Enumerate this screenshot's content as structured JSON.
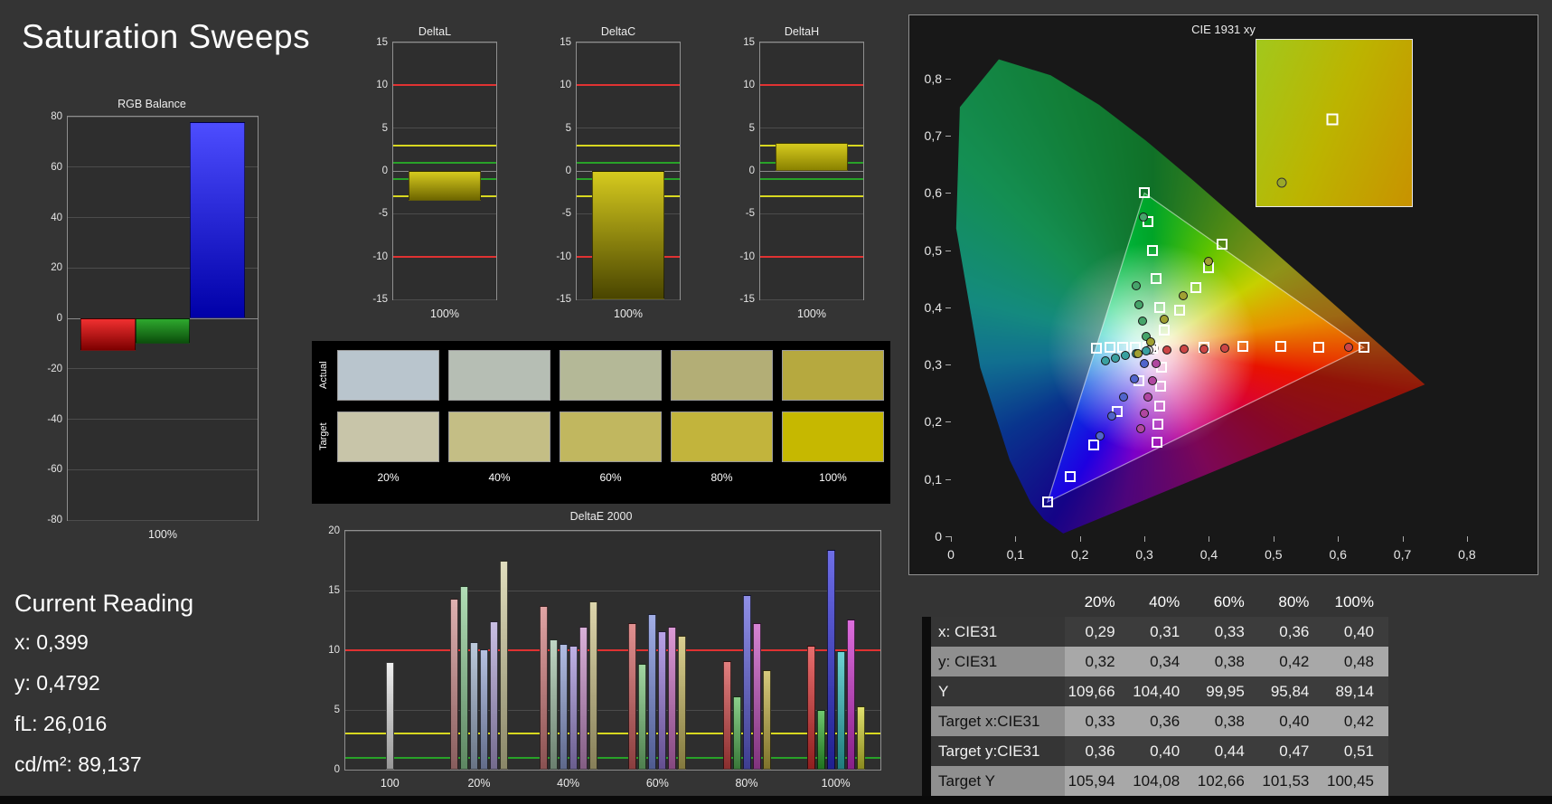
{
  "page": {
    "title": "Saturation Sweeps"
  },
  "current_reading": {
    "heading": "Current Reading",
    "lines": [
      "x: 0,399",
      "y: 0,4792",
      "fL: 26,016",
      "cd/m²: 89,137"
    ]
  },
  "swatches": {
    "row_labels": [
      "Actual",
      "Target"
    ],
    "col_labels": [
      "20%",
      "40%",
      "60%",
      "80%",
      "100%"
    ],
    "actual_colors": [
      "#b9c5cd",
      "#b6beb4",
      "#b4b897",
      "#b3ae76",
      "#b6a93f"
    ],
    "target_colors": [
      "#c8c5a9",
      "#c4be85",
      "#c1b75f",
      "#c2b43c",
      "#c6b800"
    ]
  },
  "table": {
    "col_headers": [
      "20%",
      "40%",
      "60%",
      "80%",
      "100%"
    ],
    "rows": [
      {
        "label": "x: CIE31",
        "values": [
          "0,29",
          "0,31",
          "0,33",
          "0,36",
          "0,40"
        ]
      },
      {
        "label": "y: CIE31",
        "values": [
          "0,32",
          "0,34",
          "0,38",
          "0,42",
          "0,48"
        ]
      },
      {
        "label": "Y",
        "values": [
          "109,66",
          "104,40",
          "99,95",
          "95,84",
          "89,14"
        ]
      },
      {
        "label": "Target x:CIE31",
        "values": [
          "0,33",
          "0,36",
          "0,38",
          "0,40",
          "0,42"
        ]
      },
      {
        "label": "Target y:CIE31",
        "values": [
          "0,36",
          "0,40",
          "0,44",
          "0,47",
          "0,51"
        ]
      },
      {
        "label": "Target Y",
        "values": [
          "105,94",
          "104,08",
          "102,66",
          "101,53",
          "100,45"
        ]
      }
    ]
  },
  "chart_data": [
    {
      "id": "rgb_balance",
      "type": "bar",
      "title": "RGB Balance",
      "xlabel": "100%",
      "ylim": [
        -80,
        80
      ],
      "yticks": [
        80,
        60,
        40,
        20,
        0,
        -20,
        -40,
        -60,
        -80
      ],
      "bars": [
        {
          "name": "red",
          "value": -13,
          "color": "#f03030",
          "color_dark": "#7d0000"
        },
        {
          "name": "green",
          "value": -10,
          "color": "#2ea82e",
          "color_dark": "#0c4f0c"
        },
        {
          "name": "blue",
          "value": 78,
          "color": "#4d4dff",
          "color_dark": "#0000a8"
        }
      ]
    },
    {
      "id": "delta_l",
      "type": "bar",
      "title": "DeltaL",
      "xlabel": "100%",
      "ylim": [
        -15,
        15
      ],
      "yticks": [
        15,
        10,
        5,
        0,
        -5,
        -10,
        -15
      ],
      "ref_lines": [
        {
          "v": 10,
          "color": "#e03232"
        },
        {
          "v": 3,
          "color": "#d8d820"
        },
        {
          "v": 1,
          "color": "#28a228"
        },
        {
          "v": -1,
          "color": "#28a228"
        },
        {
          "v": -3,
          "color": "#d8d820"
        },
        {
          "v": -10,
          "color": "#e03232"
        }
      ],
      "value": -3.5,
      "bar_color": "#d6ca1e",
      "bar_color_dark": "#6e6600"
    },
    {
      "id": "delta_c",
      "type": "bar",
      "title": "DeltaC",
      "xlabel": "100%",
      "ylim": [
        -15,
        15
      ],
      "yticks": [
        15,
        10,
        5,
        0,
        -5,
        -10,
        -15
      ],
      "ref_lines": [
        {
          "v": 10,
          "color": "#e03232"
        },
        {
          "v": 3,
          "color": "#d8d820"
        },
        {
          "v": 1,
          "color": "#28a228"
        },
        {
          "v": -1,
          "color": "#28a228"
        },
        {
          "v": -3,
          "color": "#d8d820"
        },
        {
          "v": -10,
          "color": "#e03232"
        }
      ],
      "value": -15,
      "bar_color": "#d6ca1e",
      "bar_color_dark": "#4a4500"
    },
    {
      "id": "delta_h",
      "type": "bar",
      "title": "DeltaH",
      "xlabel": "100%",
      "ylim": [
        -15,
        15
      ],
      "yticks": [
        15,
        10,
        5,
        0,
        -5,
        -10,
        -15
      ],
      "ref_lines": [
        {
          "v": 10,
          "color": "#e03232"
        },
        {
          "v": 3,
          "color": "#d8d820"
        },
        {
          "v": 1,
          "color": "#28a228"
        },
        {
          "v": -1,
          "color": "#28a228"
        },
        {
          "v": -3,
          "color": "#d8d820"
        },
        {
          "v": -10,
          "color": "#e03232"
        }
      ],
      "value": 3.3,
      "bar_color": "#d6ca1e",
      "bar_color_dark": "#8a8200"
    },
    {
      "id": "delta_e2000",
      "type": "grouped-bar",
      "title": "DeltaE 2000",
      "ylim": [
        0,
        20
      ],
      "yticks": [
        20,
        15,
        10,
        5,
        0
      ],
      "ref_lines": [
        {
          "v": 10,
          "color": "#e03232"
        },
        {
          "v": 3,
          "color": "#d8d820"
        },
        {
          "v": 1,
          "color": "#28a228"
        }
      ],
      "groups": [
        {
          "label": "100",
          "bars": [
            {
              "value": 9.0,
              "color": "#e9e9e9"
            }
          ]
        },
        {
          "label": "20%",
          "bars": [
            {
              "value": 14.3,
              "color": "#d18f8f"
            },
            {
              "value": 15.4,
              "color": "#8fcf96"
            },
            {
              "value": 10.7,
              "color": "#9fb2cc"
            },
            {
              "value": 10.1,
              "color": "#96a6d4"
            },
            {
              "value": 12.4,
              "color": "#b2a4d9"
            },
            {
              "value": 17.5,
              "color": "#d4cfa0"
            }
          ]
        },
        {
          "label": "40%",
          "bars": [
            {
              "value": 13.7,
              "color": "#d47d7d"
            },
            {
              "value": 10.9,
              "color": "#a4c4aa"
            },
            {
              "value": 10.5,
              "color": "#90a0d6"
            },
            {
              "value": 10.4,
              "color": "#a390da"
            },
            {
              "value": 12.0,
              "color": "#c98fc9"
            },
            {
              "value": 14.1,
              "color": "#cfc488"
            }
          ]
        },
        {
          "label": "60%",
          "bars": [
            {
              "value": 12.3,
              "color": "#d46060"
            },
            {
              "value": 8.9,
              "color": "#79c479"
            },
            {
              "value": 13.0,
              "color": "#7a8cdd"
            },
            {
              "value": 11.6,
              "color": "#9a7add"
            },
            {
              "value": 12.0,
              "color": "#cc6fc4"
            },
            {
              "value": 11.2,
              "color": "#c9ba60"
            }
          ]
        },
        {
          "label": "80%",
          "bars": [
            {
              "value": 9.1,
              "color": "#d44848"
            },
            {
              "value": 6.1,
              "color": "#58ba58"
            },
            {
              "value": 14.6,
              "color": "#5f5fdd"
            },
            {
              "value": 12.3,
              "color": "#c44fc0"
            },
            {
              "value": 8.3,
              "color": "#c4b143"
            }
          ]
        },
        {
          "label": "100%",
          "bars": [
            {
              "value": 10.4,
              "color": "#dd2f2f"
            },
            {
              "value": 5.0,
              "color": "#2faf2f"
            },
            {
              "value": 18.4,
              "color": "#2f2fdd"
            },
            {
              "value": 9.9,
              "color": "#2fbfbf"
            },
            {
              "value": 12.6,
              "color": "#cf2fcf"
            },
            {
              "value": 5.3,
              "color": "#d4d42f"
            }
          ]
        }
      ]
    },
    {
      "id": "cie_1931",
      "type": "scatter",
      "title": "CIE 1931 xy",
      "xticks": [
        "0",
        "0,1",
        "0,2",
        "0,3",
        "0,4",
        "0,5",
        "0,6",
        "0,7",
        "0,8"
      ],
      "yticks": [
        "0",
        "0,1",
        "0,2",
        "0,3",
        "0,4",
        "0,5",
        "0,6",
        "0,7",
        "0,8"
      ],
      "xlim": [
        0,
        0.88
      ],
      "ylim": [
        0,
        0.86
      ],
      "gamut_triangle": [
        [
          0.64,
          0.33
        ],
        [
          0.3,
          0.6
        ],
        [
          0.15,
          0.06
        ]
      ],
      "white_point": [
        0.3127,
        0.329
      ],
      "targets": [
        [
          0.3127,
          0.329
        ],
        [
          0.393,
          0.331
        ],
        [
          0.452,
          0.332
        ],
        [
          0.512,
          0.332
        ],
        [
          0.571,
          0.331
        ],
        [
          0.64,
          0.33
        ],
        [
          0.323,
          0.4
        ],
        [
          0.318,
          0.45
        ],
        [
          0.312,
          0.5
        ],
        [
          0.306,
          0.55
        ],
        [
          0.3,
          0.6
        ],
        [
          0.292,
          0.272
        ],
        [
          0.258,
          0.218
        ],
        [
          0.222,
          0.16
        ],
        [
          0.185,
          0.105
        ],
        [
          0.15,
          0.06
        ],
        [
          0.305,
          0.33
        ],
        [
          0.286,
          0.33
        ],
        [
          0.266,
          0.33
        ],
        [
          0.246,
          0.33
        ],
        [
          0.226,
          0.329
        ],
        [
          0.327,
          0.296
        ],
        [
          0.325,
          0.262
        ],
        [
          0.323,
          0.228
        ],
        [
          0.321,
          0.196
        ],
        [
          0.319,
          0.165
        ],
        [
          0.33,
          0.36
        ],
        [
          0.355,
          0.395
        ],
        [
          0.38,
          0.435
        ],
        [
          0.4,
          0.47
        ],
        [
          0.42,
          0.51
        ]
      ],
      "measured": [
        {
          "name": "white",
          "color": "#d8d8d8",
          "points": [
            [
              0.307,
              0.326
            ]
          ]
        },
        {
          "name": "red",
          "color": "#cc4545",
          "points": [
            [
              0.335,
              0.326
            ],
            [
              0.362,
              0.327
            ],
            [
              0.392,
              0.328
            ],
            [
              0.425,
              0.329
            ],
            [
              0.617,
              0.331
            ]
          ]
        },
        {
          "name": "green",
          "color": "#46a46a",
          "points": [
            [
              0.302,
              0.35
            ],
            [
              0.297,
              0.376
            ],
            [
              0.292,
              0.405
            ],
            [
              0.287,
              0.438
            ],
            [
              0.299,
              0.558
            ]
          ]
        },
        {
          "name": "blue",
          "color": "#5064cc",
          "points": [
            [
              0.3,
              0.302
            ],
            [
              0.285,
              0.275
            ],
            [
              0.268,
              0.243
            ],
            [
              0.25,
              0.21
            ],
            [
              0.231,
              0.176
            ]
          ]
        },
        {
          "name": "cyan",
          "color": "#3aa0a0",
          "points": [
            [
              0.302,
              0.324
            ],
            [
              0.287,
              0.32
            ],
            [
              0.271,
              0.316
            ],
            [
              0.255,
              0.311
            ],
            [
              0.239,
              0.306
            ]
          ]
        },
        {
          "name": "magenta",
          "color": "#b046a0",
          "points": [
            [
              0.318,
              0.302
            ],
            [
              0.312,
              0.272
            ],
            [
              0.306,
              0.243
            ],
            [
              0.3,
              0.215
            ],
            [
              0.294,
              0.188
            ]
          ]
        },
        {
          "name": "yellow",
          "color": "#a0a032",
          "points": [
            [
              0.29,
              0.32
            ],
            [
              0.31,
              0.34
            ],
            [
              0.33,
              0.38
            ],
            [
              0.36,
              0.42
            ],
            [
              0.4,
              0.48
            ]
          ]
        }
      ],
      "inset": {
        "square_pos_pct": [
          49,
          48
        ],
        "circle_pos_pct": [
          16,
          86
        ]
      }
    }
  ]
}
